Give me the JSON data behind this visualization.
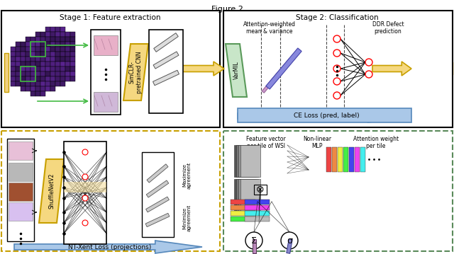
{
  "title": "Figure 2",
  "stage1_title": "Stage 1: Feature extraction",
  "stage2_title": "Stage 2: Classification",
  "stage1_box_color": "#000000",
  "stage2_box_color": "#000000",
  "bottom_left_box_color": "#c8a000",
  "bottom_right_box_color": "#4a7a4a",
  "arrow_gold_color": "#d4a800",
  "arrow_blue_color": "#6699cc",
  "arrow_green_color": "#88bb88",
  "ce_loss_text": "CE Loss (pred, label)",
  "nt_xent_text": "NT-Xent Loss (projections)",
  "varmil_text": "VarMIL",
  "simclr_text": "SimCLR-\npretrained CNN",
  "shufflev2_text": "ShuffleNetV2",
  "maximize_text": "Maximize\nagreement",
  "minimize_text": "Minimize\nagreement",
  "attn_text": "Attention-weighted\nmean & variance",
  "ddr_text": "DDR Defect\nprediction",
  "feat_vec_text": "Feature vector\nper tile of WSI",
  "nonlin_text": "Non-linear\nMLP",
  "attn_weight_text": "Attention weight\nper tile",
  "bg_color": "#ffffff",
  "grid_purple_color": "#6633aa",
  "grid_line_color": "#000000",
  "tile_img_border": "#000000"
}
